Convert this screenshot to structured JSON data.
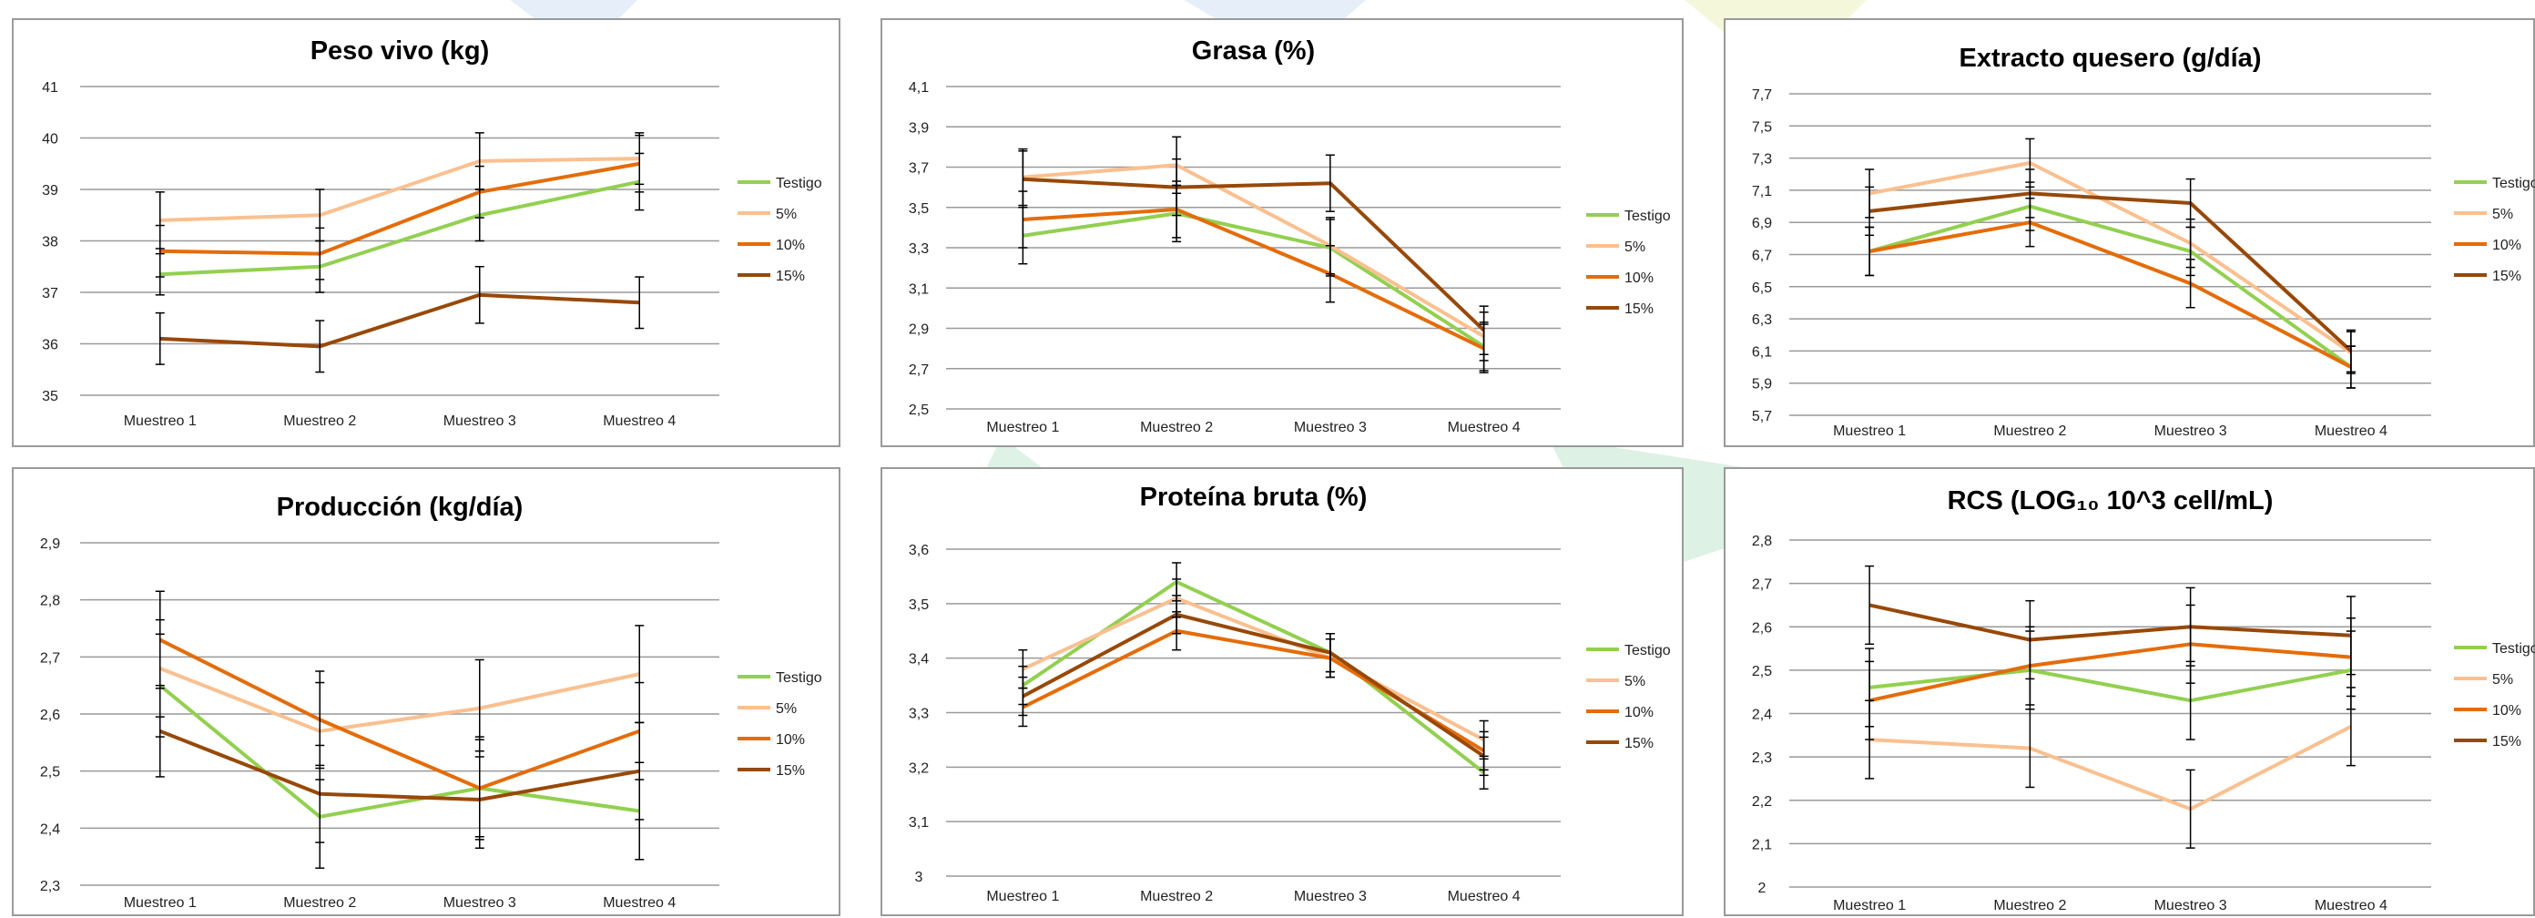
{
  "chart_data": [
    {
      "type": "line",
      "title": "Peso vivo (kg)",
      "categories": [
        "Muestreo 1",
        "Muestreo 2",
        "Muestreo 3",
        "Muestreo 4"
      ],
      "ylim": [
        35,
        41
      ],
      "ytick_step": 1,
      "yticks": [
        "35",
        "36",
        "37",
        "38",
        "39",
        "40",
        "41"
      ],
      "grid": true,
      "legend": "right",
      "series": [
        {
          "name": "Testigo",
          "color": "#92D050",
          "values": [
            37.35,
            37.5,
            38.5,
            39.15
          ],
          "errors": [
            0.4,
            0.5,
            0.5,
            0.55
          ]
        },
        {
          "name": "5%",
          "color": "#FAC090",
          "values": [
            38.4,
            38.5,
            39.55,
            39.6
          ],
          "errors": [
            0.55,
            0.5,
            0.55,
            0.5
          ]
        },
        {
          "name": "10%",
          "color": "#E46C0A",
          "values": [
            37.8,
            37.75,
            38.95,
            39.5
          ],
          "errors": [
            0.5,
            0.5,
            0.5,
            0.55
          ]
        },
        {
          "name": "15%",
          "color": "#984807",
          "values": [
            36.1,
            35.95,
            36.95,
            36.8
          ],
          "errors": [
            0.5,
            0.5,
            0.55,
            0.5
          ]
        }
      ]
    },
    {
      "type": "line",
      "title": "Grasa (%)",
      "categories": [
        "Muestreo 1",
        "Muestreo 2",
        "Muestreo 3",
        "Muestreo 4"
      ],
      "ylim": [
        2.5,
        4.1
      ],
      "ytick_step": 0.2,
      "yticks": [
        "2,5",
        "2,7",
        "2,9",
        "3,1",
        "3,3",
        "3,5",
        "3,7",
        "3,9",
        "4,1"
      ],
      "grid": true,
      "legend": "right",
      "series": [
        {
          "name": "Testigo",
          "color": "#92D050",
          "values": [
            3.36,
            3.47,
            3.3,
            2.81
          ],
          "errors": [
            0.14,
            0.14,
            0.14,
            0.12
          ]
        },
        {
          "name": "5%",
          "color": "#FAC090",
          "values": [
            3.65,
            3.71,
            3.31,
            2.86
          ],
          "errors": [
            0.14,
            0.14,
            0.14,
            0.12
          ]
        },
        {
          "name": "10%",
          "color": "#E46C0A",
          "values": [
            3.44,
            3.49,
            3.17,
            2.8
          ],
          "errors": [
            0.14,
            0.14,
            0.14,
            0.12
          ]
        },
        {
          "name": "15%",
          "color": "#984807",
          "values": [
            3.64,
            3.6,
            3.62,
            2.89
          ],
          "errors": [
            0.14,
            0.14,
            0.14,
            0.12
          ]
        }
      ]
    },
    {
      "type": "line",
      "title": "Extracto quesero (g/día)",
      "categories": [
        "Muestreo 1",
        "Muestreo 2",
        "Muestreo 3",
        "Muestreo 4"
      ],
      "ylim": [
        5.7,
        7.7
      ],
      "ytick_step": 0.2,
      "yticks": [
        "5,7",
        "5,9",
        "6,1",
        "6,3",
        "6,5",
        "6,7",
        "6,9",
        "7,1",
        "7,3",
        "7,5",
        "7,7"
      ],
      "grid": true,
      "legend": "right",
      "series": [
        {
          "name": "Testigo",
          "color": "#92D050",
          "values": [
            6.72,
            7.0,
            6.72,
            6.0
          ],
          "errors": [
            0.15,
            0.15,
            0.15,
            0.13
          ]
        },
        {
          "name": "5%",
          "color": "#FAC090",
          "values": [
            7.08,
            7.27,
            6.77,
            6.09
          ],
          "errors": [
            0.15,
            0.15,
            0.15,
            0.13
          ]
        },
        {
          "name": "10%",
          "color": "#E46C0A",
          "values": [
            6.72,
            6.9,
            6.52,
            6.0
          ],
          "errors": [
            0.15,
            0.15,
            0.15,
            0.13
          ]
        },
        {
          "name": "15%",
          "color": "#984807",
          "values": [
            6.97,
            7.08,
            7.02,
            6.1
          ],
          "errors": [
            0.15,
            0.15,
            0.15,
            0.13
          ]
        }
      ]
    },
    {
      "type": "line",
      "title": "Producción (kg/día)",
      "categories": [
        "Muestreo 1",
        "Muestreo 2",
        "Muestreo 3",
        "Muestreo 4"
      ],
      "ylim": [
        2.3,
        2.9
      ],
      "ytick_step": 0.1,
      "yticks": [
        "2,3",
        "2,4",
        "2,5",
        "2,6",
        "2,7",
        "2,8",
        "2,9"
      ],
      "grid": true,
      "legend": "right",
      "series": [
        {
          "name": "Testigo",
          "color": "#92D050",
          "values": [
            2.65,
            2.42,
            2.47,
            2.43
          ],
          "errors": [
            0.09,
            0.09,
            0.09,
            0.085
          ]
        },
        {
          "name": "5%",
          "color": "#FAC090",
          "values": [
            2.68,
            2.57,
            2.61,
            2.67
          ],
          "errors": [
            0.085,
            0.085,
            0.085,
            0.085
          ]
        },
        {
          "name": "10%",
          "color": "#E46C0A",
          "values": [
            2.73,
            2.59,
            2.47,
            2.57
          ],
          "errors": [
            0.085,
            0.085,
            0.085,
            0.085
          ]
        },
        {
          "name": "15%",
          "color": "#984807",
          "values": [
            2.57,
            2.46,
            2.45,
            2.5
          ],
          "errors": [
            0.08,
            0.085,
            0.085,
            0.085
          ]
        }
      ]
    },
    {
      "type": "line",
      "title": "Proteína bruta (%)",
      "categories": [
        "Muestreo 1",
        "Muestreo 2",
        "Muestreo 3",
        "Muestreo 4"
      ],
      "ylim": [
        3.0,
        3.6
      ],
      "ytick_step": 0.1,
      "yticks": [
        "3",
        "3,1",
        "3,2",
        "3,3",
        "3,4",
        "3,5",
        "3,6"
      ],
      "grid": true,
      "legend": "right",
      "series": [
        {
          "name": "Testigo",
          "color": "#92D050",
          "values": [
            3.35,
            3.54,
            3.41,
            3.19
          ],
          "errors": [
            0.035,
            0.035,
            0.035,
            0.03
          ]
        },
        {
          "name": "5%",
          "color": "#FAC090",
          "values": [
            3.38,
            3.51,
            3.4,
            3.25
          ],
          "errors": [
            0.035,
            0.035,
            0.035,
            0.035
          ]
        },
        {
          "name": "10%",
          "color": "#E46C0A",
          "values": [
            3.31,
            3.45,
            3.4,
            3.23
          ],
          "errors": [
            0.035,
            0.035,
            0.035,
            0.035
          ]
        },
        {
          "name": "15%",
          "color": "#984807",
          "values": [
            3.33,
            3.48,
            3.41,
            3.22
          ],
          "errors": [
            0.035,
            0.035,
            0.035,
            0.035
          ]
        }
      ]
    },
    {
      "type": "line",
      "title": "RCS (LOG₁₀ 10^3 cell/mL)",
      "categories": [
        "Muestreo 1",
        "Muestreo 2",
        "Muestreo 3",
        "Muestreo 4"
      ],
      "ylim": [
        2.0,
        2.8
      ],
      "ytick_step": 0.1,
      "yticks": [
        "2",
        "2,1",
        "2,2",
        "2,3",
        "2,4",
        "2,5",
        "2,6",
        "2,7",
        "2,8"
      ],
      "grid": true,
      "legend": "right",
      "series": [
        {
          "name": "Testigo",
          "color": "#92D050",
          "values": [
            2.46,
            2.5,
            2.43,
            2.5
          ],
          "errors": [
            0.09,
            0.09,
            0.09,
            0.09
          ]
        },
        {
          "name": "5%",
          "color": "#FAC090",
          "values": [
            2.34,
            2.32,
            2.18,
            2.37
          ],
          "errors": [
            0.09,
            0.09,
            0.09,
            0.09
          ]
        },
        {
          "name": "10%",
          "color": "#E46C0A",
          "values": [
            2.43,
            2.51,
            2.56,
            2.53
          ],
          "errors": [
            0.09,
            0.09,
            0.09,
            0.09
          ]
        },
        {
          "name": "15%",
          "color": "#984807",
          "values": [
            2.65,
            2.57,
            2.6,
            2.58
          ],
          "errors": [
            0.09,
            0.09,
            0.09,
            0.09
          ]
        }
      ]
    }
  ]
}
